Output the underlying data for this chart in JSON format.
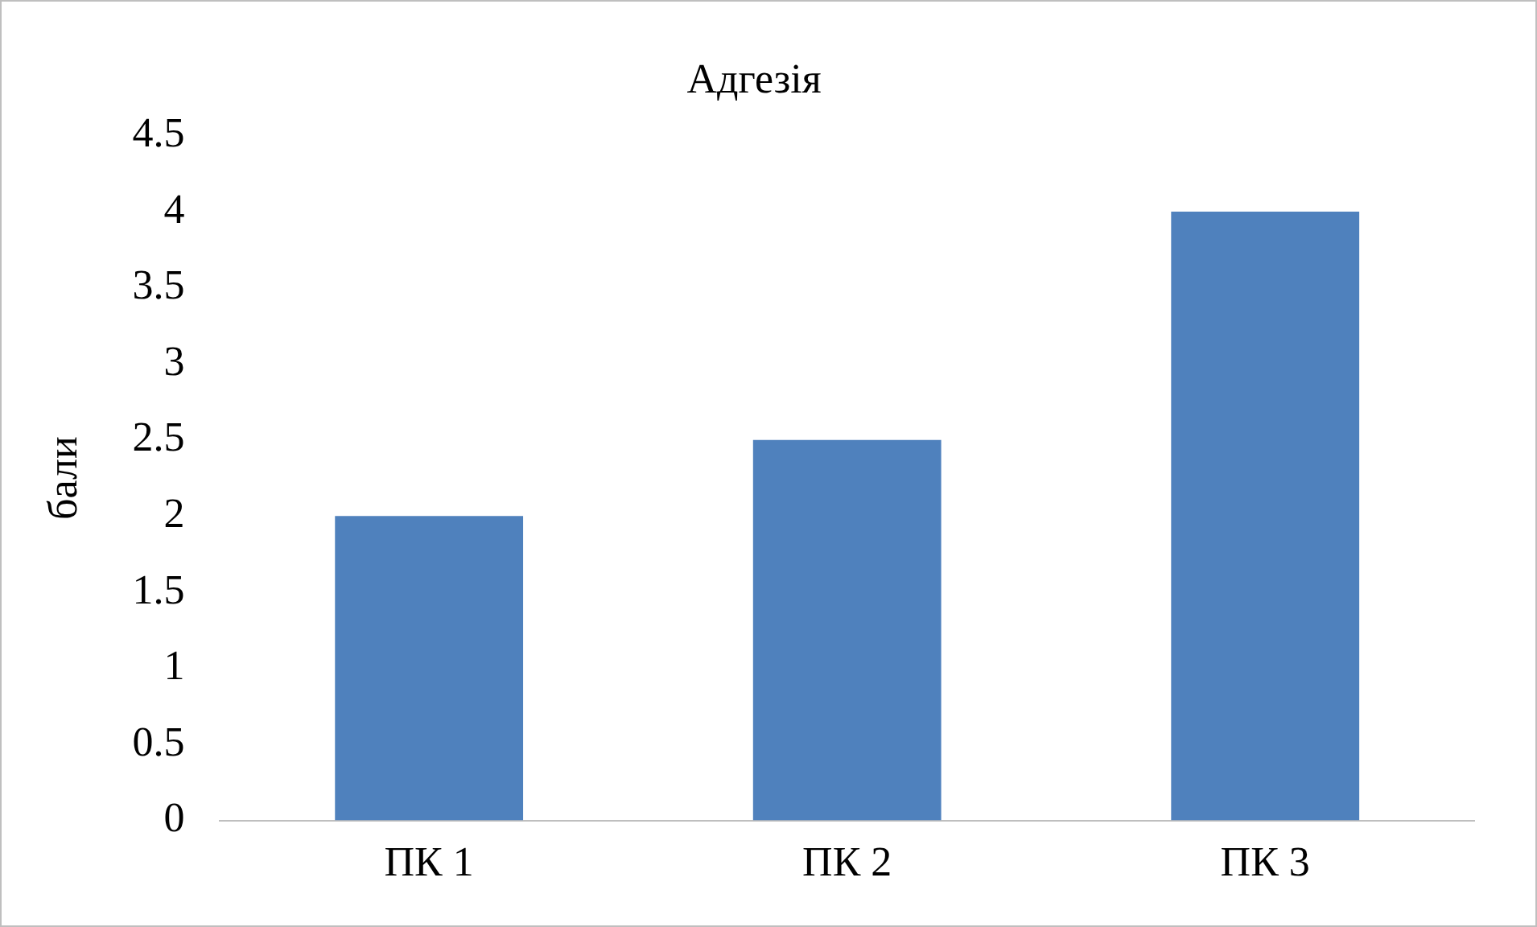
{
  "chart_data": {
    "type": "bar",
    "title": "Адгезія",
    "ylabel": "бали",
    "categories": [
      "ПК 1",
      "ПК 2",
      "ПК 3"
    ],
    "series": [
      {
        "color": "#4f81bd",
        "values": [
          2,
          2.5,
          4
        ]
      }
    ],
    "ylim": [
      0,
      4.5
    ],
    "yticks": [
      0,
      0.5,
      1,
      1.5,
      2,
      2.5,
      3,
      3.5,
      4,
      4.5
    ],
    "grid": false,
    "legend": false
  }
}
